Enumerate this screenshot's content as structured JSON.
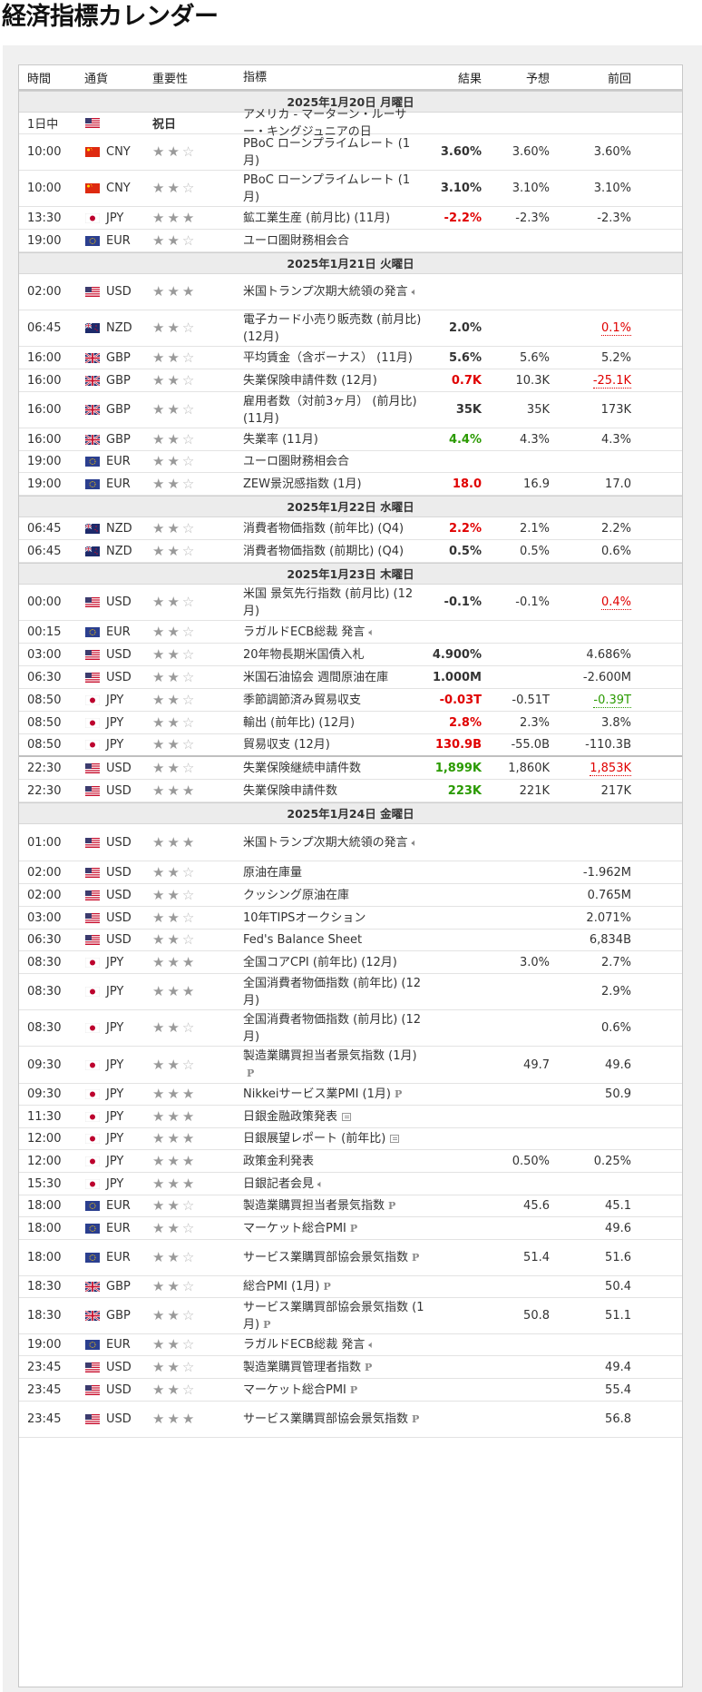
{
  "page_title": "経済指標カレンダー",
  "headers": {
    "time": "時間",
    "currency": "通貨",
    "importance": "重要性",
    "event": "指標",
    "actual": "結果",
    "forecast": "予想",
    "previous": "前回"
  },
  "days": [
    {
      "label": "2025年1月20日 月曜日",
      "rows": [
        {
          "time": "1日中",
          "flag": "us",
          "currency": "",
          "imp_text": "祝日",
          "event": "アメリカ - マーターン・ルーサー・キングジュニアの日",
          "actual": "",
          "forecast": "",
          "previous": "",
          "h": 24
        },
        {
          "time": "10:00",
          "flag": "cn",
          "currency": "CNY",
          "stars": 2,
          "event": "PBoC ローンプライムレート (1月)",
          "actual": "3.60%",
          "forecast": "3.60%",
          "previous": "3.60%",
          "h": 40
        },
        {
          "time": "10:00",
          "flag": "cn",
          "currency": "CNY",
          "stars": 2,
          "event": "PBoC ローンプライムレート (1月)",
          "actual": "3.10%",
          "forecast": "3.10%",
          "previous": "3.10%",
          "h": 40
        },
        {
          "time": "13:30",
          "flag": "jp",
          "currency": "JPY",
          "stars": 3,
          "event": "鉱工業生産 (前月比) (11月)",
          "actual": "-2.2%",
          "actual_color": "red",
          "forecast": "-2.3%",
          "previous": "-2.3%",
          "h": 25
        },
        {
          "time": "19:00",
          "flag": "eu",
          "currency": "EUR",
          "stars": 2,
          "event": "ユーロ圏財務相会合",
          "actual": "",
          "forecast": "",
          "previous": "",
          "h": 25
        }
      ]
    },
    {
      "label": "2025年1月21日 火曜日",
      "rows": [
        {
          "time": "02:00",
          "flag": "us",
          "currency": "USD",
          "stars": 3,
          "event": "米国トランプ次期大統領の発言",
          "icon": "speech",
          "actual": "",
          "forecast": "",
          "previous": "",
          "h": 40
        },
        {
          "time": "06:45",
          "flag": "nz",
          "currency": "NZD",
          "stars": 2,
          "event": "電子カード小売り販売数 (前月比) (12月)",
          "actual": "2.0%",
          "forecast": "",
          "previous": "0.1%",
          "prev_color": "red",
          "h": 40
        },
        {
          "time": "16:00",
          "flag": "gb",
          "currency": "GBP",
          "stars": 2,
          "event": "平均賃金（含ボーナス） (11月)",
          "actual": "5.6%",
          "forecast": "5.6%",
          "previous": "5.2%",
          "h": 25
        },
        {
          "time": "16:00",
          "flag": "gb",
          "currency": "GBP",
          "stars": 2,
          "event": "失業保険申請件数 (12月)",
          "actual": "0.7K",
          "actual_color": "red",
          "forecast": "10.3K",
          "previous": "-25.1K",
          "prev_color": "red",
          "h": 25
        },
        {
          "time": "16:00",
          "flag": "gb",
          "currency": "GBP",
          "stars": 2,
          "event": "雇用者数（対前3ヶ月） (前月比) (11月)",
          "actual": "35K",
          "forecast": "35K",
          "previous": "173K",
          "h": 40
        },
        {
          "time": "16:00",
          "flag": "gb",
          "currency": "GBP",
          "stars": 2,
          "event": "失業率 (11月)",
          "actual": "4.4%",
          "actual_color": "green",
          "forecast": "4.3%",
          "previous": "4.3%",
          "h": 25
        },
        {
          "time": "19:00",
          "flag": "eu",
          "currency": "EUR",
          "stars": 2,
          "event": "ユーロ圏財務相会合",
          "actual": "",
          "forecast": "",
          "previous": "",
          "h": 24
        },
        {
          "time": "19:00",
          "flag": "eu",
          "currency": "EUR",
          "stars": 2,
          "event": "ZEW景況感指数 (1月)",
          "actual": "18.0",
          "actual_color": "red",
          "forecast": "16.9",
          "previous": "17.0",
          "h": 25
        }
      ]
    },
    {
      "label": "2025年1月22日 水曜日",
      "rows": [
        {
          "time": "06:45",
          "flag": "nz",
          "currency": "NZD",
          "stars": 2,
          "event": "消費者物価指数 (前年比) (Q4)",
          "actual": "2.2%",
          "actual_color": "red",
          "forecast": "2.1%",
          "previous": "2.2%",
          "h": 25
        },
        {
          "time": "06:45",
          "flag": "nz",
          "currency": "NZD",
          "stars": 2,
          "event": "消費者物価指数 (前期比) (Q4)",
          "actual": "0.5%",
          "forecast": "0.5%",
          "previous": "0.6%",
          "h": 25
        }
      ]
    },
    {
      "label": "2025年1月23日 木曜日",
      "rows": [
        {
          "time": "00:00",
          "flag": "us",
          "currency": "USD",
          "stars": 2,
          "event": "米国 景気先行指数 (前月比) (12月)",
          "actual": "-0.1%",
          "forecast": "-0.1%",
          "previous": "0.4%",
          "prev_color": "red",
          "h": 40
        },
        {
          "time": "00:15",
          "flag": "eu",
          "currency": "EUR",
          "stars": 2,
          "event": "ラガルドECB総裁 発言",
          "icon": "speech",
          "actual": "",
          "forecast": "",
          "previous": "",
          "h": 25
        },
        {
          "time": "03:00",
          "flag": "us",
          "currency": "USD",
          "stars": 2,
          "event": "20年物長期米国債入札",
          "actual": "4.900%",
          "forecast": "",
          "previous": "4.686%",
          "h": 25
        },
        {
          "time": "06:30",
          "flag": "us",
          "currency": "USD",
          "stars": 2,
          "event": "米国石油協会 週間原油在庫",
          "actual": "1.000M",
          "forecast": "",
          "previous": "-2.600M",
          "h": 25
        },
        {
          "time": "08:50",
          "flag": "jp",
          "currency": "JPY",
          "stars": 2,
          "event": "季節調節済み貿易収支",
          "actual": "-0.03T",
          "actual_color": "red",
          "forecast": "-0.51T",
          "previous": "-0.39T",
          "prev_color": "green",
          "h": 25
        },
        {
          "time": "08:50",
          "flag": "jp",
          "currency": "JPY",
          "stars": 2,
          "event": "輸出 (前年比) (12月)",
          "actual": "2.8%",
          "actual_color": "red",
          "forecast": "2.3%",
          "previous": "3.8%",
          "h": 25
        },
        {
          "time": "08:50",
          "flag": "jp",
          "currency": "JPY",
          "stars": 2,
          "event": "貿易収支 (12月)",
          "actual": "130.9B",
          "actual_color": "red",
          "forecast": "-55.0B",
          "previous": "-110.3B",
          "h": 25,
          "dk": true
        },
        {
          "time": "22:30",
          "flag": "us",
          "currency": "USD",
          "stars": 2,
          "event": "失業保険継続申請件数",
          "actual": "1,899K",
          "actual_color": "green",
          "forecast": "1,860K",
          "previous": "1,853K",
          "prev_color": "red",
          "h": 25
        },
        {
          "time": "22:30",
          "flag": "us",
          "currency": "USD",
          "stars": 3,
          "event": "失業保険申請件数",
          "actual": "223K",
          "actual_color": "green",
          "forecast": "221K",
          "previous": "217K",
          "h": 25
        }
      ]
    },
    {
      "label": "2025年1月24日 金曜日",
      "rows": [
        {
          "time": "01:00",
          "flag": "us",
          "currency": "USD",
          "stars": 3,
          "event": "米国トランプ次期大統領の発言",
          "icon": "speech",
          "actual": "",
          "forecast": "",
          "previous": "",
          "h": 41
        },
        {
          "time": "02:00",
          "flag": "us",
          "currency": "USD",
          "stars": 2,
          "event": "原油在庫量",
          "actual": "",
          "forecast": "",
          "previous": "-1.962M",
          "h": 25
        },
        {
          "time": "02:00",
          "flag": "us",
          "currency": "USD",
          "stars": 2,
          "event": "クッシング原油在庫",
          "actual": "",
          "forecast": "",
          "previous": "0.765M",
          "h": 25
        },
        {
          "time": "03:00",
          "flag": "us",
          "currency": "USD",
          "stars": 2,
          "event": "10年TIPSオークション",
          "actual": "",
          "forecast": "",
          "previous": "2.071%",
          "h": 25
        },
        {
          "time": "06:30",
          "flag": "us",
          "currency": "USD",
          "stars": 2,
          "event": "Fed's Balance Sheet",
          "actual": "",
          "forecast": "",
          "previous": "6,834B",
          "h": 24
        },
        {
          "time": "08:30",
          "flag": "jp",
          "currency": "JPY",
          "stars": 3,
          "event": "全国コアCPI (前年比) (12月)",
          "actual": "",
          "forecast": "3.0%",
          "previous": "2.7%",
          "h": 25
        },
        {
          "time": "08:30",
          "flag": "jp",
          "currency": "JPY",
          "stars": 3,
          "event": "全国消費者物価指数 (前年比) (12月)",
          "actual": "",
          "forecast": "",
          "previous": "2.9%",
          "h": 40
        },
        {
          "time": "08:30",
          "flag": "jp",
          "currency": "JPY",
          "stars": 2,
          "event": "全国消費者物価指数 (前月比) (12月)",
          "actual": "",
          "forecast": "",
          "previous": "0.6%",
          "h": 40
        },
        {
          "time": "09:30",
          "flag": "jp",
          "currency": "JPY",
          "stars": 2,
          "event": "製造業購買担当者景気指数 (1月)",
          "icon": "p",
          "actual": "",
          "forecast": "49.7",
          "previous": "49.6",
          "h": 41
        },
        {
          "time": "09:30",
          "flag": "jp",
          "currency": "JPY",
          "stars": 3,
          "event": "Nikkeiサービス業PMI (1月)",
          "icon": "p",
          "actual": "",
          "forecast": "",
          "previous": "50.9",
          "h": 24
        },
        {
          "time": "11:30",
          "flag": "jp",
          "currency": "JPY",
          "stars": 3,
          "event": "日銀金融政策発表",
          "icon": "doc",
          "actual": "",
          "forecast": "",
          "previous": "",
          "h": 25
        },
        {
          "time": "12:00",
          "flag": "jp",
          "currency": "JPY",
          "stars": 3,
          "event": "日銀展望レポート (前年比)",
          "icon": "doc",
          "actual": "",
          "forecast": "",
          "previous": "",
          "h": 24
        },
        {
          "time": "12:00",
          "flag": "jp",
          "currency": "JPY",
          "stars": 3,
          "event": "政策金利発表",
          "actual": "",
          "forecast": "0.50%",
          "previous": "0.25%",
          "h": 25
        },
        {
          "time": "15:30",
          "flag": "jp",
          "currency": "JPY",
          "stars": 3,
          "event": "日銀記者会見",
          "icon": "speech",
          "actual": "",
          "forecast": "",
          "previous": "",
          "h": 25
        },
        {
          "time": "18:00",
          "flag": "eu",
          "currency": "EUR",
          "stars": 2,
          "event": "製造業購買担当者景気指数",
          "icon": "p",
          "actual": "",
          "forecast": "45.6",
          "previous": "45.1",
          "h": 24
        },
        {
          "time": "18:00",
          "flag": "eu",
          "currency": "EUR",
          "stars": 2,
          "event": "マーケット総合PMI",
          "icon": "p",
          "actual": "",
          "forecast": "",
          "previous": "49.6",
          "h": 25
        },
        {
          "time": "18:00",
          "flag": "eu",
          "currency": "EUR",
          "stars": 2,
          "event": "サービス業購買部協会景気指数",
          "icon": "p",
          "actual": "",
          "forecast": "51.4",
          "previous": "51.6",
          "h": 40
        },
        {
          "time": "18:30",
          "flag": "gb",
          "currency": "GBP",
          "stars": 2,
          "event": "総合PMI (1月)",
          "icon": "p",
          "actual": "",
          "forecast": "",
          "previous": "50.4",
          "h": 24
        },
        {
          "time": "18:30",
          "flag": "gb",
          "currency": "GBP",
          "stars": 2,
          "event": "サービス業購買部協会景気指数 (1月)",
          "icon": "p",
          "actual": "",
          "forecast": "50.8",
          "previous": "51.1",
          "h": 40
        },
        {
          "time": "19:00",
          "flag": "eu",
          "currency": "EUR",
          "stars": 2,
          "event": "ラガルドECB総裁 発言",
          "icon": "speech",
          "actual": "",
          "forecast": "",
          "previous": "",
          "h": 24
        },
        {
          "time": "23:45",
          "flag": "us",
          "currency": "USD",
          "stars": 2,
          "event": "製造業購買管理者指数",
          "icon": "p",
          "actual": "",
          "forecast": "",
          "previous": "49.4",
          "h": 25
        },
        {
          "time": "23:45",
          "flag": "us",
          "currency": "USD",
          "stars": 2,
          "event": "マーケット総合PMI",
          "icon": "p",
          "actual": "",
          "forecast": "",
          "previous": "55.4",
          "h": 25
        },
        {
          "time": "23:45",
          "flag": "us",
          "currency": "USD",
          "stars": 3,
          "event": "サービス業購買部協会景気指数",
          "icon": "p",
          "actual": "",
          "forecast": "",
          "previous": "56.8",
          "h": 40
        }
      ]
    }
  ],
  "colors": {
    "red": "#e00000",
    "green": "#2a9a00",
    "star": "#9a9a9a",
    "day_bg": "#ececec"
  },
  "icons": {
    "speech": "speaker-icon",
    "p": "preliminary-icon",
    "doc": "document-icon"
  }
}
